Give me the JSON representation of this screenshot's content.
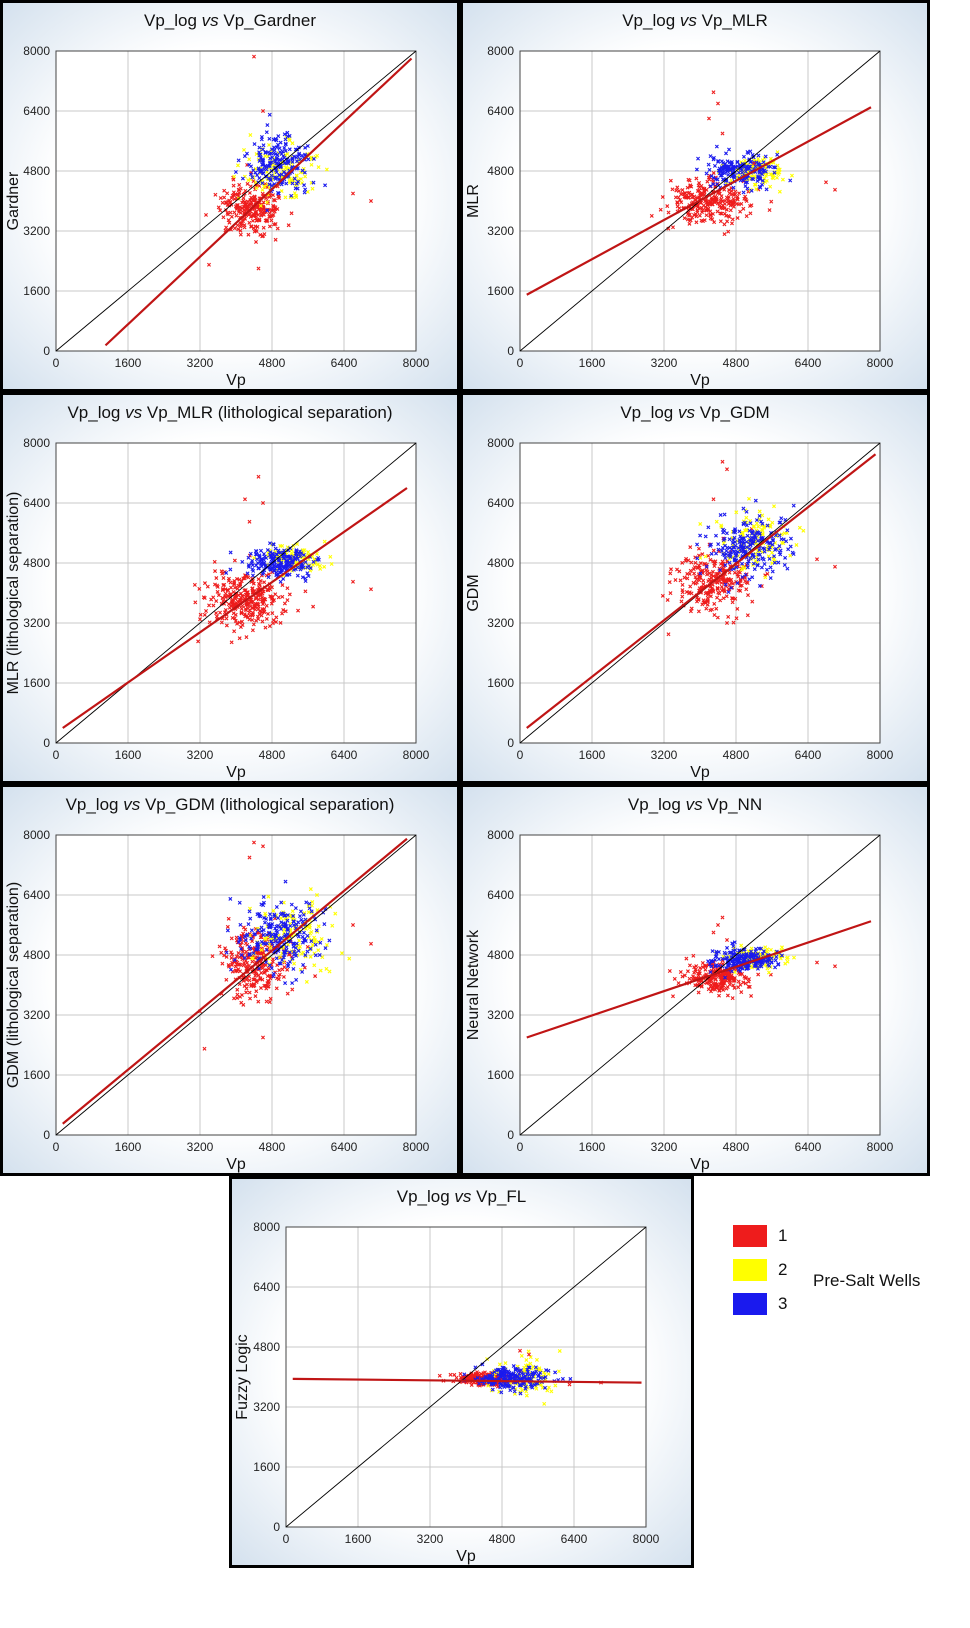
{
  "colors": {
    "group1": "#ee1c1c",
    "group2": "#ffff00",
    "group3": "#1a1aee",
    "fit_line": "#c01515",
    "identity_line": "#000000",
    "grid": "#c8c8c8"
  },
  "legend": {
    "title": "Pre-Salt Wells",
    "entries": [
      {
        "label": "1",
        "color": "#ee1c1c"
      },
      {
        "label": "2",
        "color": "#ffff00"
      },
      {
        "label": "3",
        "color": "#1a1aee"
      }
    ]
  },
  "chart_data": [
    {
      "type": "scatter",
      "title_prefix": "Vp_log",
      "title_vs": "vs",
      "title_suffix": "Vp_Gardner",
      "xlabel": "Vp",
      "ylabel": "Gardner",
      "xlim": [
        0,
        8000
      ],
      "ylim": [
        0,
        8000
      ],
      "xticks": [
        "0",
        "1600",
        "3200",
        "4800",
        "6400",
        "8000"
      ],
      "yticks": [
        "0",
        "1600",
        "3200",
        "4800",
        "6400",
        "8000"
      ],
      "identity_line": [
        [
          0,
          0
        ],
        [
          8000,
          8000
        ]
      ],
      "fit_line": [
        [
          1100,
          150
        ],
        [
          7900,
          7800
        ]
      ],
      "clusters": [
        {
          "series": "1",
          "cx": 4350,
          "cy": 3800,
          "sx": 350,
          "sy": 350,
          "n": 260
        },
        {
          "series": "2",
          "cx": 5000,
          "cy": 4800,
          "sx": 400,
          "sy": 350,
          "n": 130
        },
        {
          "series": "3",
          "cx": 5000,
          "cy": 5000,
          "sx": 380,
          "sy": 380,
          "n": 200
        }
      ],
      "outliers": [
        [
          4400,
          7850
        ],
        [
          4600,
          6400
        ],
        [
          6600,
          4200
        ],
        [
          7000,
          4000
        ],
        [
          4500,
          2200
        ],
        [
          3400,
          2300
        ]
      ]
    },
    {
      "type": "scatter",
      "title_prefix": "Vp_log",
      "title_vs": "vs",
      "title_suffix": "Vp_MLR",
      "xlabel": "Vp",
      "ylabel": "MLR",
      "xlim": [
        0,
        8000
      ],
      "ylim": [
        0,
        8000
      ],
      "xticks": [
        "0",
        "1600",
        "3200",
        "4800",
        "6400",
        "8000"
      ],
      "yticks": [
        "0",
        "1600",
        "3200",
        "4800",
        "6400",
        "8000"
      ],
      "identity_line": [
        [
          0,
          0
        ],
        [
          8000,
          8000
        ]
      ],
      "fit_line": [
        [
          150,
          1500
        ],
        [
          7800,
          6500
        ]
      ],
      "clusters": [
        {
          "series": "1",
          "cx": 4200,
          "cy": 4000,
          "sx": 420,
          "sy": 300,
          "n": 260
        },
        {
          "series": "2",
          "cx": 5200,
          "cy": 4800,
          "sx": 350,
          "sy": 200,
          "n": 110
        },
        {
          "series": "3",
          "cx": 4900,
          "cy": 4800,
          "sx": 380,
          "sy": 220,
          "n": 180
        }
      ],
      "outliers": [
        [
          4300,
          6900
        ],
        [
          4400,
          6600
        ],
        [
          4200,
          6200
        ],
        [
          5200,
          5000
        ],
        [
          6800,
          4500
        ],
        [
          7000,
          4300
        ],
        [
          3400,
          3300
        ],
        [
          4500,
          5800
        ]
      ]
    },
    {
      "type": "scatter",
      "title_prefix": "Vp_log",
      "title_vs": "vs",
      "title_suffix": "Vp_MLR (lithological separation)",
      "xlabel": "Vp",
      "ylabel": "MLR (lithological separation)",
      "xlim": [
        0,
        8000
      ],
      "ylim": [
        0,
        8000
      ],
      "xticks": [
        "0",
        "1600",
        "3200",
        "4800",
        "6400",
        "8000"
      ],
      "yticks": [
        "0",
        "1600",
        "3200",
        "4800",
        "6400",
        "8000"
      ],
      "identity_line": [
        [
          0,
          0
        ],
        [
          8000,
          8000
        ]
      ],
      "fit_line": [
        [
          150,
          400
        ],
        [
          7800,
          6800
        ]
      ],
      "clusters": [
        {
          "series": "1",
          "cx": 4200,
          "cy": 3800,
          "sx": 450,
          "sy": 350,
          "n": 300
        },
        {
          "series": "2",
          "cx": 5300,
          "cy": 4900,
          "sx": 350,
          "sy": 180,
          "n": 110
        },
        {
          "series": "3",
          "cx": 5000,
          "cy": 4800,
          "sx": 350,
          "sy": 200,
          "n": 200
        }
      ],
      "outliers": [
        [
          4500,
          7100
        ],
        [
          4200,
          6500
        ],
        [
          4600,
          6400
        ],
        [
          4300,
          5900
        ],
        [
          6600,
          4300
        ],
        [
          7000,
          4100
        ],
        [
          3200,
          3300
        ]
      ]
    },
    {
      "type": "scatter",
      "title_prefix": "Vp_log",
      "title_vs": "vs",
      "title_suffix": "Vp_GDM",
      "xlabel": "Vp",
      "ylabel": "GDM",
      "xlim": [
        0,
        8000
      ],
      "ylim": [
        0,
        8000
      ],
      "xticks": [
        "0",
        "1600",
        "3200",
        "4800",
        "6400",
        "8000"
      ],
      "yticks": [
        "0",
        "1600",
        "3200",
        "4800",
        "6400",
        "8000"
      ],
      "identity_line": [
        [
          0,
          0
        ],
        [
          8000,
          8000
        ]
      ],
      "fit_line": [
        [
          150,
          400
        ],
        [
          7900,
          7700
        ]
      ],
      "clusters": [
        {
          "series": "1",
          "cx": 4300,
          "cy": 4300,
          "sx": 400,
          "sy": 400,
          "n": 260
        },
        {
          "series": "2",
          "cx": 5300,
          "cy": 5400,
          "sx": 450,
          "sy": 400,
          "n": 130
        },
        {
          "series": "3",
          "cx": 5000,
          "cy": 5200,
          "sx": 450,
          "sy": 450,
          "n": 230
        }
      ],
      "outliers": [
        [
          4500,
          7500
        ],
        [
          4600,
          7300
        ],
        [
          4300,
          6500
        ],
        [
          6600,
          4900
        ],
        [
          7000,
          4700
        ],
        [
          3300,
          2900
        ],
        [
          4600,
          3200
        ]
      ]
    },
    {
      "type": "scatter",
      "title_prefix": "Vp_log",
      "title_vs": "vs",
      "title_suffix": "Vp_GDM (lithological separation)",
      "xlabel": "Vp",
      "ylabel": "GDM (lithological separation)",
      "xlim": [
        0,
        8000
      ],
      "ylim": [
        0,
        8000
      ],
      "xticks": [
        "0",
        "1600",
        "3200",
        "4800",
        "6400",
        "8000"
      ],
      "yticks": [
        "0",
        "1600",
        "3200",
        "4800",
        "6400",
        "8000"
      ],
      "identity_line": [
        [
          0,
          0
        ],
        [
          8000,
          8000
        ]
      ],
      "fit_line": [
        [
          150,
          300
        ],
        [
          7800,
          7900
        ]
      ],
      "clusters": [
        {
          "series": "1",
          "cx": 4400,
          "cy": 4600,
          "sx": 400,
          "sy": 450,
          "n": 260
        },
        {
          "series": "2",
          "cx": 5300,
          "cy": 5300,
          "sx": 450,
          "sy": 450,
          "n": 140
        },
        {
          "series": "3",
          "cx": 5000,
          "cy": 5300,
          "sx": 450,
          "sy": 500,
          "n": 230
        }
      ],
      "outliers": [
        [
          4400,
          7800
        ],
        [
          4300,
          7400
        ],
        [
          4600,
          7700
        ],
        [
          6600,
          5600
        ],
        [
          7000,
          5100
        ],
        [
          3300,
          2300
        ],
        [
          4600,
          2600
        ],
        [
          3200,
          3300
        ]
      ]
    },
    {
      "type": "scatter",
      "title_prefix": "Vp_log",
      "title_vs": "vs",
      "title_suffix": "Vp_NN",
      "xlabel": "Vp",
      "ylabel": "Neural Network",
      "xlim": [
        0,
        8000
      ],
      "ylim": [
        0,
        8000
      ],
      "xticks": [
        "0",
        "1600",
        "3200",
        "4800",
        "6400",
        "8000"
      ],
      "yticks": [
        "0",
        "1600",
        "3200",
        "4800",
        "6400",
        "8000"
      ],
      "identity_line": [
        [
          0,
          0
        ],
        [
          8000,
          8000
        ]
      ],
      "fit_line": [
        [
          150,
          2600
        ],
        [
          7800,
          5700
        ]
      ],
      "clusters": [
        {
          "series": "1",
          "cx": 4400,
          "cy": 4200,
          "sx": 350,
          "sy": 200,
          "n": 240
        },
        {
          "series": "2",
          "cx": 5300,
          "cy": 4700,
          "sx": 350,
          "sy": 150,
          "n": 110
        },
        {
          "series": "3",
          "cx": 5000,
          "cy": 4650,
          "sx": 350,
          "sy": 150,
          "n": 200
        }
      ],
      "outliers": [
        [
          4500,
          5800
        ],
        [
          4400,
          5600
        ],
        [
          4300,
          5400
        ],
        [
          6600,
          4600
        ],
        [
          7000,
          4500
        ],
        [
          3400,
          3700
        ],
        [
          4600,
          5200
        ]
      ]
    },
    {
      "type": "scatter",
      "title_prefix": "Vp_log",
      "title_vs": "vs",
      "title_suffix": "Vp_FL",
      "xlabel": "Vp",
      "ylabel": "Fuzzy Logic",
      "xlim": [
        0,
        8000
      ],
      "ylim": [
        0,
        8000
      ],
      "xticks": [
        "0",
        "1600",
        "3200",
        "4800",
        "6400",
        "8000"
      ],
      "yticks": [
        "0",
        "1600",
        "3200",
        "4800",
        "6400",
        "8000"
      ],
      "identity_line": [
        [
          0,
          0
        ],
        [
          8000,
          8000
        ]
      ],
      "fit_line": [
        [
          150,
          3950
        ],
        [
          7900,
          3850
        ]
      ],
      "clusters": [
        {
          "series": "1",
          "cx": 4400,
          "cy": 3950,
          "sx": 300,
          "sy": 80,
          "n": 230
        },
        {
          "series": "2",
          "cx": 5300,
          "cy": 4000,
          "sx": 350,
          "sy": 250,
          "n": 110
        },
        {
          "series": "3",
          "cx": 5000,
          "cy": 3950,
          "sx": 400,
          "sy": 150,
          "n": 200
        }
      ],
      "outliers": [
        [
          5200,
          4700
        ],
        [
          5400,
          4600
        ],
        [
          6300,
          3800
        ],
        [
          7000,
          3850
        ],
        [
          3500,
          3900
        ]
      ]
    }
  ]
}
